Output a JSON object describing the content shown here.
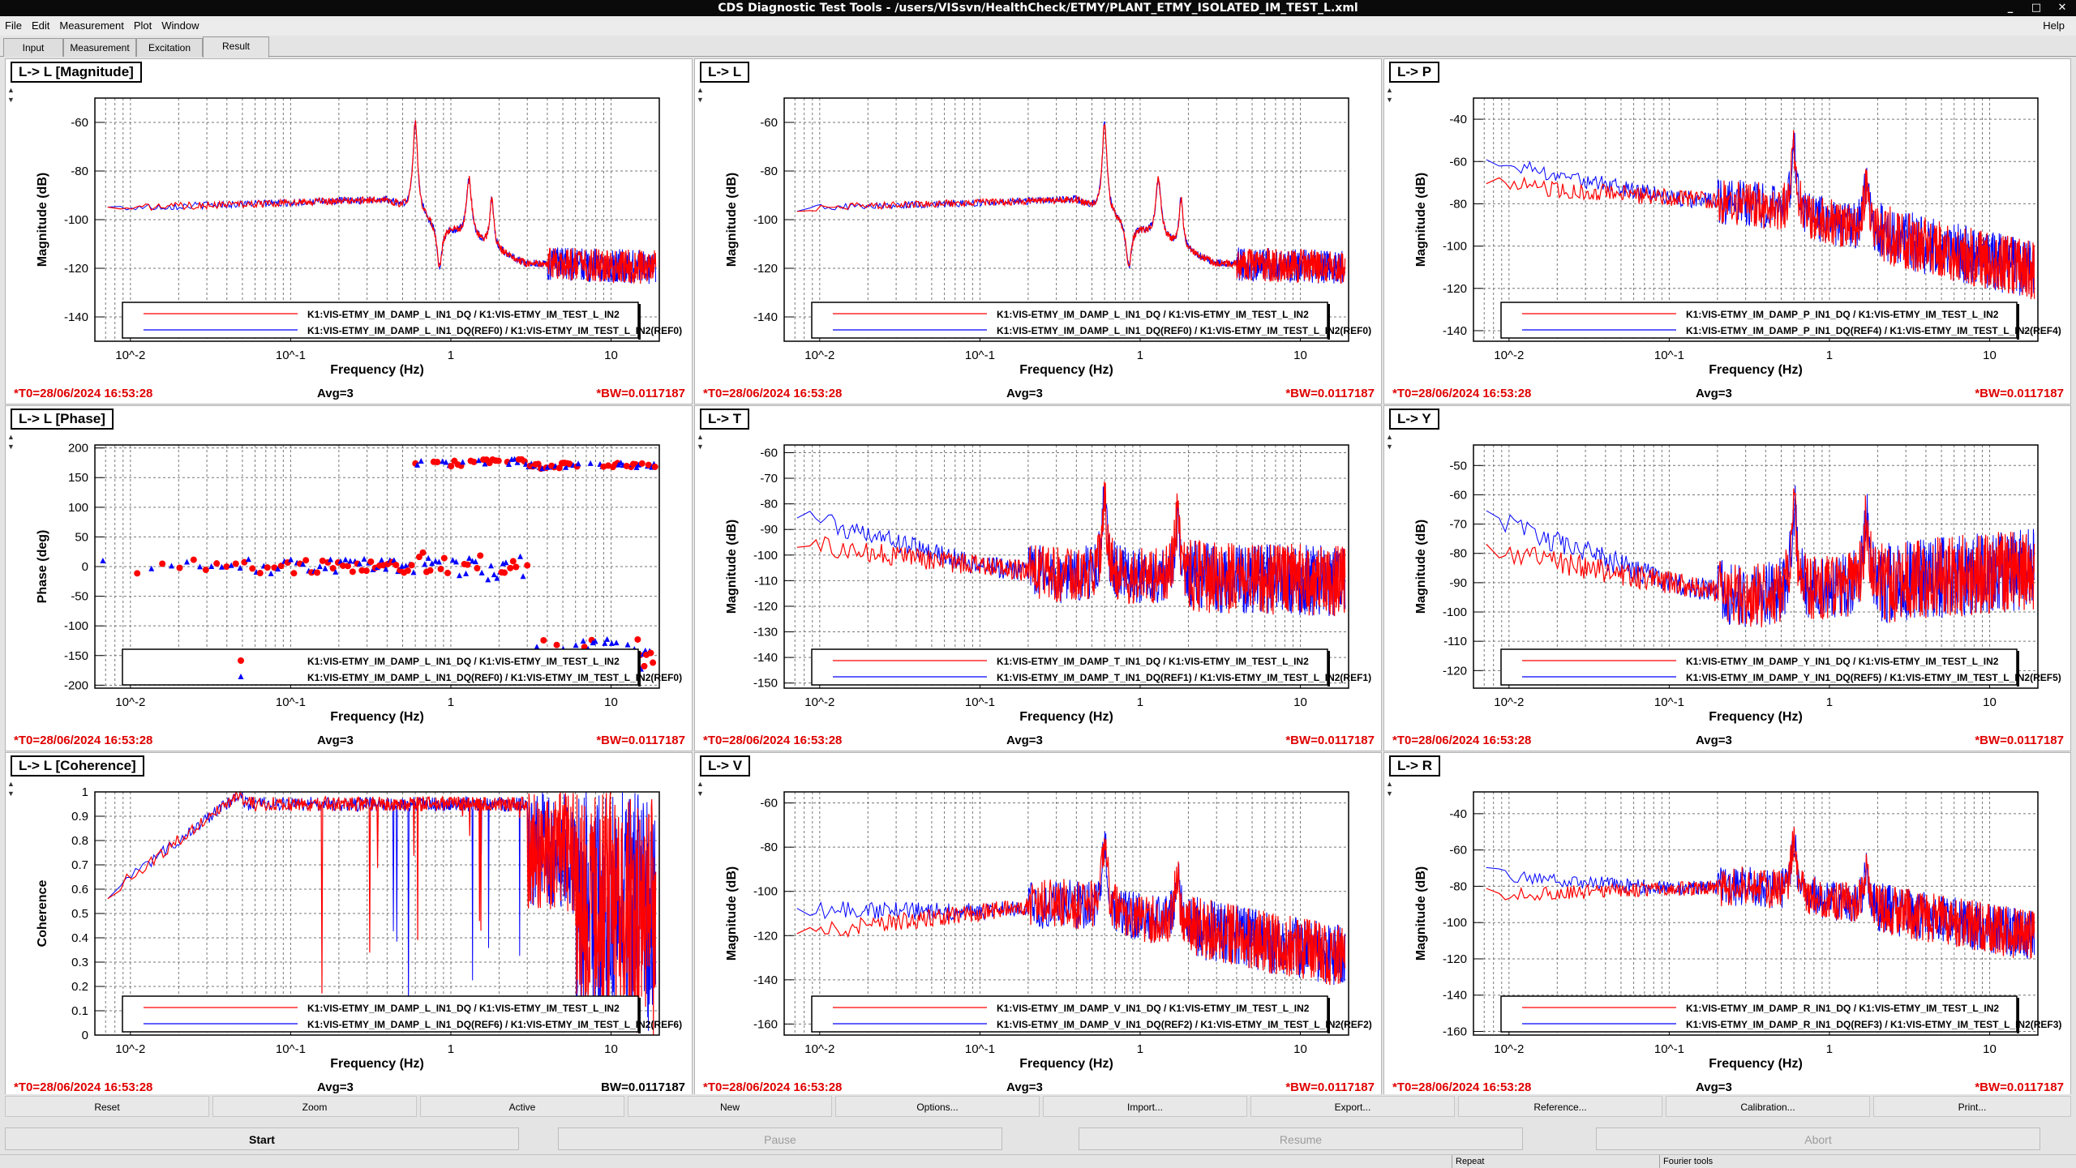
{
  "window": {
    "title": "CDS Diagnostic Test Tools - /users/VISsvn/HealthCheck/ETMY/PLANT_ETMY_ISOLATED_IM_TEST_L.xml",
    "minimize": "_",
    "maximize": "□",
    "close": "✕"
  },
  "menu": {
    "file": "File",
    "edit": "Edit",
    "measurement": "Measurement",
    "plot": "Plot",
    "window": "Window",
    "help": "Help"
  },
  "tabs": [
    "Input",
    "Measurement",
    "Excitation",
    "Result"
  ],
  "panels": [
    {
      "title": "L-> L [Magnitude]",
      "type": "mag",
      "ylabel": "Magnitude (dB)",
      "yticks": [
        -60,
        -80,
        -100,
        -120,
        -140
      ],
      "ymin": -150,
      "ymax": -50,
      "legend": [
        "K1:VIS-ETMY_IM_DAMP_L_IN1_DQ / K1:VIS-ETMY_IM_TEST_L_IN2",
        "K1:VIS-ETMY_IM_DAMP_L_IN1_DQ(REF0) / K1:VIS-ETMY_IM_TEST_L_IN2(REF0)"
      ],
      "t0": "*T0=28/06/2024 16:53:28",
      "avg": "Avg=3",
      "bw": "*BW=0.0117187",
      "bw_red": true
    },
    {
      "title": "L-> L",
      "type": "mag",
      "ylabel": "Magnitude (dB)",
      "yticks": [
        -60,
        -80,
        -100,
        -120,
        -140
      ],
      "ymin": -150,
      "ymax": -50,
      "legend": [
        "K1:VIS-ETMY_IM_DAMP_L_IN1_DQ / K1:VIS-ETMY_IM_TEST_L_IN2",
        "K1:VIS-ETMY_IM_DAMP_L_IN1_DQ(REF0) / K1:VIS-ETMY_IM_TEST_L_IN2(REF0)"
      ],
      "t0": "*T0=28/06/2024 16:53:28",
      "avg": "Avg=3",
      "bw": "*BW=0.0117187",
      "bw_red": true
    },
    {
      "title": "L-> P",
      "type": "mag",
      "ylabel": "Magnitude (dB)",
      "yticks": [
        -40,
        -60,
        -80,
        -100,
        -120,
        -140
      ],
      "ymin": -145,
      "ymax": -30,
      "legend": [
        "K1:VIS-ETMY_IM_DAMP_P_IN1_DQ / K1:VIS-ETMY_IM_TEST_L_IN2",
        "K1:VIS-ETMY_IM_DAMP_P_IN1_DQ(REF4) / K1:VIS-ETMY_IM_TEST_L_IN2(REF4)"
      ],
      "t0": "*T0=28/06/2024 16:53:28",
      "avg": "Avg=3",
      "bw": "*BW=0.0117187",
      "bw_red": true
    },
    {
      "title": "L-> L [Phase]",
      "type": "phase",
      "ylabel": "Phase (deg)",
      "yticks": [
        200,
        150,
        100,
        50,
        0,
        -50,
        -100,
        -150,
        -200
      ],
      "ymin": -205,
      "ymax": 205,
      "legend": [
        "K1:VIS-ETMY_IM_DAMP_L_IN1_DQ / K1:VIS-ETMY_IM_TEST_L_IN2",
        "K1:VIS-ETMY_IM_DAMP_L_IN1_DQ(REF0) / K1:VIS-ETMY_IM_TEST_L_IN2(REF0)"
      ],
      "t0": "*T0=28/06/2024 16:53:28",
      "avg": "Avg=3",
      "bw": "*BW=0.0117187",
      "bw_red": true
    },
    {
      "title": "L-> T",
      "type": "mag",
      "ylabel": "Magnitude (dB)",
      "yticks": [
        -60,
        -70,
        -80,
        -90,
        -100,
        -110,
        -120,
        -130,
        -140,
        -150
      ],
      "ymin": -152,
      "ymax": -57,
      "legend": [
        "K1:VIS-ETMY_IM_DAMP_T_IN1_DQ / K1:VIS-ETMY_IM_TEST_L_IN2",
        "K1:VIS-ETMY_IM_DAMP_T_IN1_DQ(REF1) / K1:VIS-ETMY_IM_TEST_L_IN2(REF1)"
      ],
      "t0": "*T0=28/06/2024 16:53:28",
      "avg": "Avg=3",
      "bw": "*BW=0.0117187",
      "bw_red": true
    },
    {
      "title": "L-> Y",
      "type": "mag",
      "ylabel": "Magnitude (dB)",
      "yticks": [
        -50,
        -60,
        -70,
        -80,
        -90,
        -100,
        -110,
        -120
      ],
      "ymin": -126,
      "ymax": -43,
      "legend": [
        "K1:VIS-ETMY_IM_DAMP_Y_IN1_DQ / K1:VIS-ETMY_IM_TEST_L_IN2",
        "K1:VIS-ETMY_IM_DAMP_Y_IN1_DQ(REF5) / K1:VIS-ETMY_IM_TEST_L_IN2(REF5)"
      ],
      "t0": "*T0=28/06/2024 16:53:28",
      "avg": "Avg=3",
      "bw": "*BW=0.0117187",
      "bw_red": true
    },
    {
      "title": "L-> L [Coherence]",
      "type": "coh",
      "ylabel": "Coherence",
      "yticks": [
        1,
        0.9,
        0.8,
        0.7,
        0.6,
        0.5,
        0.4,
        0.3,
        0.2,
        0.1,
        0
      ],
      "ymin": 0,
      "ymax": 1,
      "legend": [
        "K1:VIS-ETMY_IM_DAMP_L_IN1_DQ / K1:VIS-ETMY_IM_TEST_L_IN2",
        "K1:VIS-ETMY_IM_DAMP_L_IN1_DQ(REF6) / K1:VIS-ETMY_IM_TEST_L_IN2(REF6)"
      ],
      "t0": "*T0=28/06/2024 16:53:28",
      "avg": "Avg=3",
      "bw": "BW=0.0117187",
      "bw_red": false
    },
    {
      "title": "L-> V",
      "type": "mag",
      "ylabel": "Magnitude (dB)",
      "yticks": [
        -60,
        -80,
        -100,
        -120,
        -140,
        -160
      ],
      "ymin": -165,
      "ymax": -55,
      "legend": [
        "K1:VIS-ETMY_IM_DAMP_V_IN1_DQ / K1:VIS-ETMY_IM_TEST_L_IN2",
        "K1:VIS-ETMY_IM_DAMP_V_IN1_DQ(REF2) / K1:VIS-ETMY_IM_TEST_L_IN2(REF2)"
      ],
      "t0": "*T0=28/06/2024 16:53:28",
      "avg": "Avg=3",
      "bw": "*BW=0.0117187",
      "bw_red": true
    },
    {
      "title": "L-> R",
      "type": "mag",
      "ylabel": "Magnitude (dB)",
      "yticks": [
        -40,
        -60,
        -80,
        -100,
        -120,
        -140,
        -160
      ],
      "ymin": -162,
      "ymax": -28,
      "legend": [
        "K1:VIS-ETMY_IM_DAMP_R_IN1_DQ / K1:VIS-ETMY_IM_TEST_L_IN2",
        "K1:VIS-ETMY_IM_DAMP_R_IN1_DQ(REF3) / K1:VIS-ETMY_IM_TEST_L_IN2(REF3)"
      ],
      "t0": "*T0=28/06/2024 16:53:28",
      "avg": "Avg=3",
      "bw": "*BW=0.0117187",
      "bw_red": true
    }
  ],
  "xaxis": {
    "label": "Frequency (Hz)",
    "ticks": [
      "10^-2",
      "10^-1",
      "1",
      "10"
    ]
  },
  "colors": {
    "series1": "#ff0000",
    "series2": "#0000ff",
    "highlight": "#e00000"
  },
  "toolbar": [
    "Reset",
    "Zoom",
    "Active",
    "New",
    "Options...",
    "Import...",
    "Export...",
    "Reference...",
    "Calibration...",
    "Print..."
  ],
  "actions": {
    "start": "Start",
    "pause": "Pause",
    "resume": "Resume",
    "abort": "Abort"
  },
  "status": {
    "repeat": "Repeat",
    "fourier": "Fourier tools"
  }
}
